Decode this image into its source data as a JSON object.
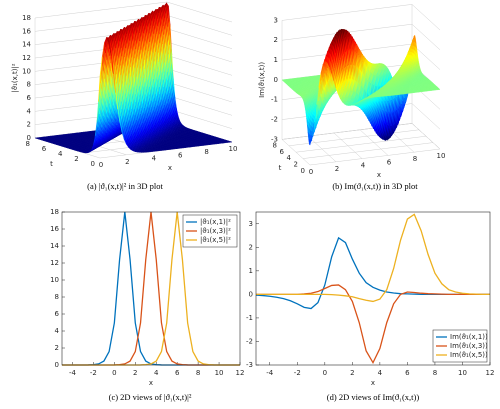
{
  "chart_data": [
    {
      "type": "surface3d",
      "caption": "(a) |ϑ₁(x,t)|² in 3D plot",
      "xlabel": "x",
      "ylabel": "t",
      "zlabel": "|ϑ₁(x,t)|²",
      "xlim": [
        0,
        10
      ],
      "xticks": [
        0,
        2,
        4,
        6,
        8,
        10
      ],
      "ylim": [
        0,
        8
      ],
      "yticks": [
        0,
        2,
        4,
        6,
        8
      ],
      "zlim": [
        0,
        18
      ],
      "zticks": [
        0,
        2,
        4,
        6,
        8,
        10,
        12,
        14,
        16,
        18
      ],
      "colormap": "jet"
    },
    {
      "type": "surface3d",
      "caption": "(b) Im(ϑ₁(x,t)) in 3D plot",
      "xlabel": "x",
      "ylabel": "t",
      "zlabel": "Im(ϑ₁(x,t))",
      "xlim": [
        0,
        10
      ],
      "xticks": [
        0,
        2,
        4,
        6,
        8,
        10
      ],
      "ylim": [
        0,
        8
      ],
      "yticks": [
        0,
        2,
        4,
        6,
        8
      ],
      "zlim": [
        -3,
        3
      ],
      "zticks": [
        -3,
        -2,
        -1,
        0,
        1,
        2,
        3
      ],
      "colormap": "jet"
    },
    {
      "type": "line",
      "caption": "(c) 2D views of |ϑ₁(x,t)|²",
      "xlabel": "x",
      "x": [
        -5,
        -4.5,
        -4,
        -3.5,
        -3,
        -2.5,
        -2,
        -1.5,
        -1,
        -0.5,
        0,
        0.5,
        1,
        1.5,
        2,
        2.5,
        3,
        3.5,
        4,
        4.5,
        5,
        5.5,
        6,
        6.5,
        7,
        7.5,
        8,
        8.5,
        9,
        9.5,
        10,
        10.5,
        11,
        11.5,
        12
      ],
      "series": [
        {
          "name": "|ϑ₁(x,1)|²",
          "color": "#0072bd",
          "values": [
            0,
            0,
            0,
            0,
            0,
            0.01,
            0.04,
            0.13,
            0.46,
            1.58,
            4.95,
            12.4,
            18,
            12.4,
            4.95,
            1.58,
            0.46,
            0.13,
            0.04,
            0.01,
            0,
            0,
            0,
            0,
            0,
            0,
            0,
            0,
            0,
            0,
            0,
            0,
            0,
            0,
            0
          ]
        },
        {
          "name": "|ϑ₁(x,3)|²",
          "color": "#d95319",
          "values": [
            0,
            0,
            0,
            0,
            0,
            0,
            0,
            0,
            0,
            0,
            0.01,
            0.04,
            0.13,
            0.46,
            1.58,
            4.95,
            12.4,
            18,
            12.4,
            4.95,
            1.58,
            0.46,
            0.13,
            0.04,
            0.01,
            0,
            0,
            0,
            0,
            0,
            0,
            0,
            0,
            0,
            0
          ]
        },
        {
          "name": "|ϑ₁(x,5)|²",
          "color": "#edb120",
          "values": [
            0,
            0,
            0,
            0,
            0,
            0,
            0,
            0,
            0,
            0,
            0,
            0,
            0,
            0,
            0,
            0.01,
            0.04,
            0.13,
            0.46,
            1.58,
            4.95,
            12.4,
            18,
            12.4,
            4.95,
            1.58,
            0.46,
            0.13,
            0.04,
            0.01,
            0,
            0,
            0,
            0,
            0
          ]
        }
      ],
      "xlim": [
        -5,
        12
      ],
      "xticks": [
        -4,
        -2,
        0,
        2,
        4,
        6,
        8,
        10,
        12
      ],
      "ylim": [
        0,
        18
      ],
      "yticks": [
        0,
        2,
        4,
        6,
        8,
        10,
        12,
        14,
        16,
        18
      ],
      "legend": "upper right"
    },
    {
      "type": "line",
      "caption": "(d) 2D views of Im(ϑ₁(x,t))",
      "xlabel": "x",
      "x": [
        -5,
        -4.5,
        -4,
        -3.5,
        -3,
        -2.5,
        -2,
        -1.5,
        -1,
        -0.5,
        0,
        0.5,
        1,
        1.5,
        2,
        2.5,
        3,
        3.5,
        4,
        4.5,
        5,
        5.5,
        6,
        6.5,
        7,
        7.5,
        8,
        8.5,
        9,
        9.5,
        10,
        10.5,
        11,
        11.5,
        12
      ],
      "series": [
        {
          "name": "Im(ϑ₁(x,1))",
          "color": "#0072bd",
          "values": [
            -0.03,
            -0.05,
            -0.08,
            -0.12,
            -0.18,
            -0.27,
            -0.4,
            -0.55,
            -0.6,
            -0.35,
            0.4,
            1.6,
            2.4,
            2.2,
            1.5,
            0.9,
            0.5,
            0.3,
            0.18,
            0.1,
            0.06,
            0.03,
            0.02,
            0.01,
            0,
            0,
            0,
            0,
            0,
            0,
            0,
            0,
            0,
            0,
            0
          ]
        },
        {
          "name": "Im(ϑ₁(x,3))",
          "color": "#d95319",
          "values": [
            0,
            0,
            0,
            0,
            0,
            0,
            0,
            0.02,
            0.05,
            0.12,
            0.25,
            0.38,
            0.4,
            0.2,
            -0.3,
            -1.2,
            -2.4,
            -2.9,
            -2.3,
            -1.2,
            -0.4,
            0,
            0.1,
            0.08,
            0.05,
            0.03,
            0.02,
            0.01,
            0,
            0,
            0,
            0,
            0,
            0,
            0
          ]
        },
        {
          "name": "Im(ϑ₁(x,5))",
          "color": "#edb120",
          "values": [
            0,
            0,
            0,
            0,
            0,
            0,
            0,
            0,
            0,
            0,
            0,
            -0.01,
            -0.03,
            -0.06,
            -0.1,
            -0.18,
            -0.25,
            -0.3,
            -0.2,
            0.2,
            1.1,
            2.3,
            3.2,
            3.4,
            2.7,
            1.7,
            0.9,
            0.45,
            0.2,
            0.1,
            0.05,
            0.02,
            0.01,
            0,
            0
          ]
        }
      ],
      "xlim": [
        -5,
        12
      ],
      "xticks": [
        -4,
        -2,
        0,
        2,
        4,
        6,
        8,
        10,
        12
      ],
      "ylim": [
        -3,
        3.5
      ],
      "yticks": [
        -3,
        -2,
        -1,
        0,
        1,
        2,
        3
      ],
      "legend": "lower right"
    }
  ]
}
